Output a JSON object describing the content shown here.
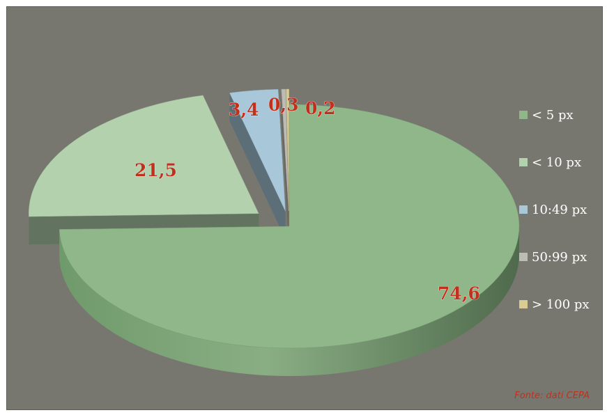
{
  "chart_data": {
    "type": "pie",
    "style": "3D exploded pie",
    "slices": [
      {
        "label": "< 5 px",
        "value": 74.6,
        "value_label": "74,6",
        "color": "#8fb78a"
      },
      {
        "label": "< 10 px",
        "value": 21.5,
        "value_label": "21,5",
        "color": "#b3d1ac"
      },
      {
        "label": "10:49 px",
        "value": 3.4,
        "value_label": "3,4",
        "color": "#a8c8da"
      },
      {
        "label": "50:99 px",
        "value": 0.3,
        "value_label": "0,3",
        "color": "#bcbcb4"
      },
      {
        "label": "> 100 px",
        "value": 0.2,
        "value_label": "0,2",
        "color": "#d8cb94"
      }
    ],
    "legend_position": "right",
    "label_color": "#c0301c",
    "background_color": "#777770"
  },
  "source_note": "Fonte: dati CEPA"
}
